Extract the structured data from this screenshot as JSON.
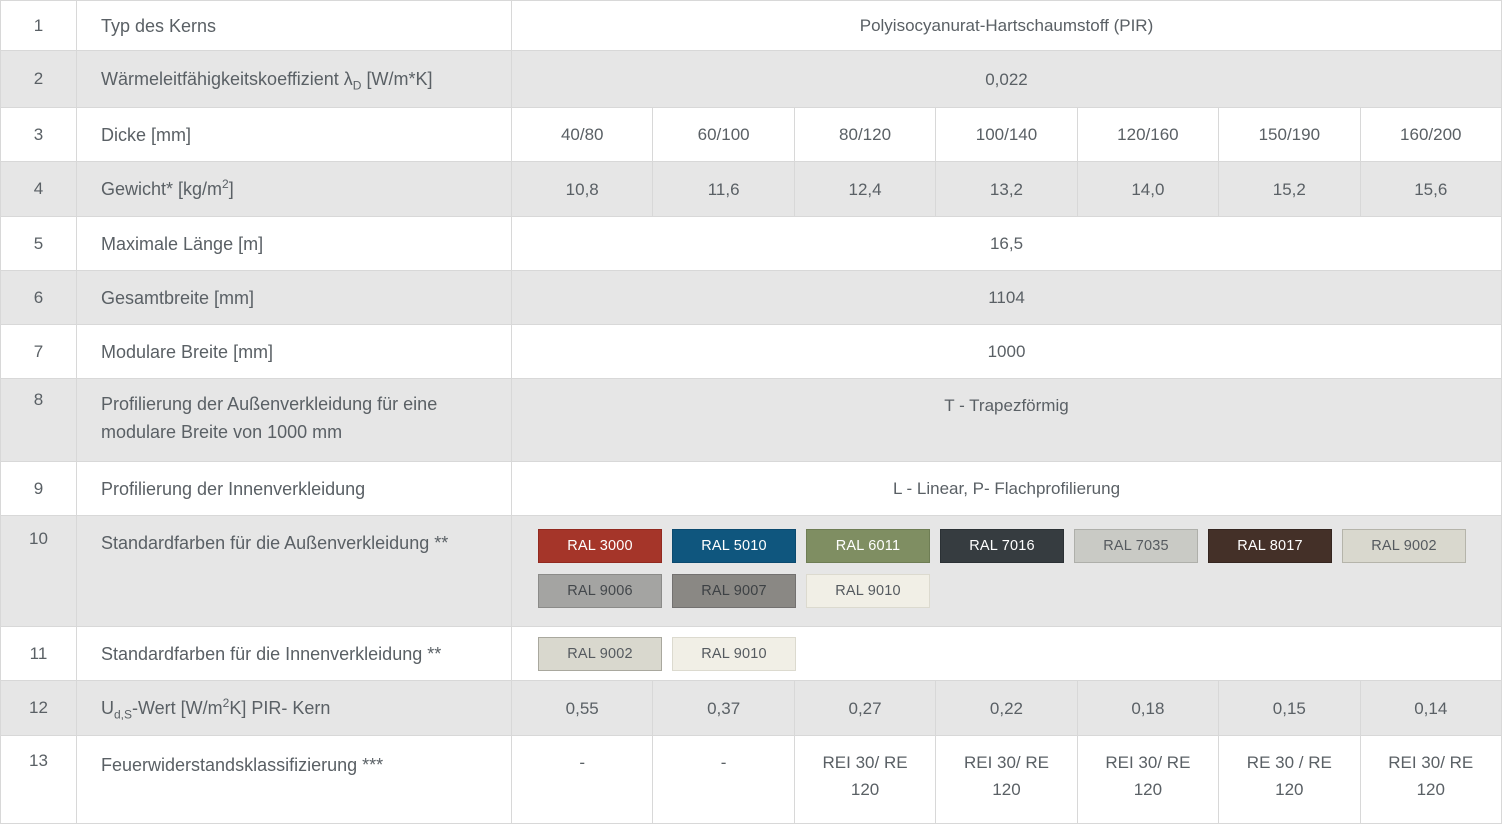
{
  "colors": {
    "row_bg": "#ffffff",
    "row_alt_bg": "#e6e6e6",
    "border": "#d8d8d8",
    "text": "#5a6065"
  },
  "rows": [
    {
      "num": "1",
      "label": "Typ des Kerns",
      "value": "Polyisocyanurat-Hartschaumstoff (PIR)"
    },
    {
      "num": "2",
      "label_pre": "Wärmeleitfähigkeitskoeffizient λ",
      "label_sub": "D",
      "label_post": " [W/m*K]",
      "value": "0,022"
    },
    {
      "num": "3",
      "label": "Dicke [mm]",
      "values": [
        "40/80",
        "60/100",
        "80/120",
        "100/140",
        "120/160",
        "150/190",
        "160/200"
      ]
    },
    {
      "num": "4",
      "label_pre": "Gewicht* [kg/m",
      "label_sup": "2",
      "label_post": "]",
      "values": [
        "10,8",
        "11,6",
        "12,4",
        "13,2",
        "14,0",
        "15,2",
        "15,6"
      ]
    },
    {
      "num": "5",
      "label": "Maximale Länge [m]",
      "value": "16,5"
    },
    {
      "num": "6",
      "label": "Gesamtbreite [mm]",
      "value": "1104"
    },
    {
      "num": "7",
      "label": "Modulare Breite [mm]",
      "value": "1000"
    },
    {
      "num": "8",
      "label": "Profilierung der Außenverkleidung für eine modulare Breite von 1000 mm",
      "value": "T - Trapezförmig"
    },
    {
      "num": "9",
      "label": "Profilierung der Innenverkleidung",
      "value": "L - Linear, P- Flachprofilierung"
    },
    {
      "num": "10",
      "label": "Standardfarben für die Außenverkleidung **",
      "swatches": [
        {
          "label": "RAL 3000",
          "bg": "#a53529",
          "border": "#92291f",
          "text": "#ffffff"
        },
        {
          "label": "RAL 5010",
          "bg": "#0f567e",
          "border": "#0b4a6f",
          "text": "#ffffff"
        },
        {
          "label": "RAL 6011",
          "bg": "#7f8e62",
          "border": "#6e7d54",
          "text": "#ffffff"
        },
        {
          "label": "RAL 7016",
          "bg": "#363c40",
          "border": "#2b3135",
          "text": "#ffffff"
        },
        {
          "label": "RAL 7035",
          "bg": "#c9cac5",
          "border": "#aeafaa",
          "text": "#555a5f"
        },
        {
          "label": "RAL 8017",
          "bg": "#443028",
          "border": "#352620",
          "text": "#ffffff"
        },
        {
          "label": "RAL 9002",
          "bg": "#d9d8ce",
          "border": "#b5b4aa",
          "text": "#555a5f"
        },
        {
          "label": "RAL 9006",
          "bg": "#a4a4a2",
          "border": "#8b8b89",
          "text": "#43474b"
        },
        {
          "label": "RAL 9007",
          "bg": "#8a8884",
          "border": "#737170",
          "text": "#3d4144"
        },
        {
          "label": "RAL 9010",
          "bg": "#f1efe6",
          "border": "#dcdacf",
          "text": "#555a5f"
        }
      ]
    },
    {
      "num": "11",
      "label": "Standardfarben für die Innenverkleidung **",
      "swatches": [
        {
          "label": "RAL 9002",
          "bg": "#d9d8ce",
          "border": "#a9a89e",
          "text": "#555a5f"
        },
        {
          "label": "RAL 9010",
          "bg": "#f1efe6",
          "border": "#dcdacf",
          "text": "#555a5f"
        }
      ]
    },
    {
      "num": "12",
      "label_pre": "U",
      "label_sub": "d,S",
      "label_mid": "-Wert [W/m",
      "label_sup": "2",
      "label_post": "K] PIR- Kern",
      "values": [
        "0,55",
        "0,37",
        "0,27",
        "0,22",
        "0,18",
        "0,15",
        "0,14"
      ]
    },
    {
      "num": "13",
      "label": "Feuerwiderstandsklassifizierung ***",
      "values": [
        "-",
        "-",
        "REI 30/ RE 120",
        "REI 30/ RE 120",
        "REI 30/ RE 120",
        "RE 30 / RE 120",
        "REI 30/ RE 120"
      ]
    }
  ]
}
